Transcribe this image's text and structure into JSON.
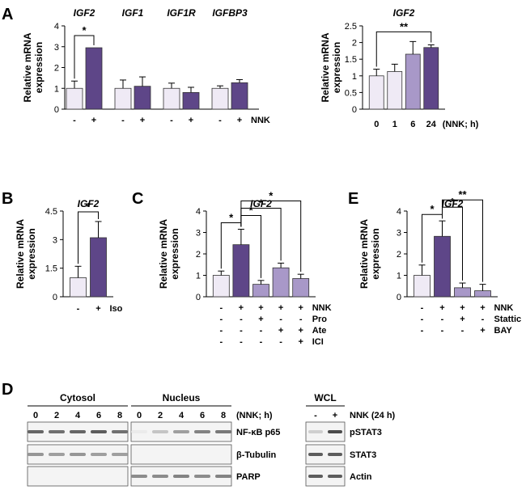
{
  "colors": {
    "light": "#efeaf5",
    "mid": "#a898c8",
    "dark": "#5e4688",
    "axis": "#000000"
  },
  "panel_labels": {
    "A": "A",
    "B": "B",
    "C": "C",
    "D": "D",
    "E": "E"
  },
  "chart_data": [
    {
      "id": "A1",
      "type": "bar",
      "ylabel": "Relative mRNA expression",
      "ylim": [
        0,
        4
      ],
      "yticks": [
        "0",
        "1",
        "2",
        "3",
        "4"
      ],
      "groups": [
        {
          "title": "IGF2",
          "bars": [
            {
              "x": "-",
              "value": 1.0,
              "err": 0.35,
              "color": "light"
            },
            {
              "x": "+",
              "value": 2.95,
              "err": 0,
              "color": "dark"
            }
          ]
        },
        {
          "title": "IGF1",
          "bars": [
            {
              "x": "-",
              "value": 1.0,
              "err": 0.4,
              "color": "light"
            },
            {
              "x": "+",
              "value": 1.1,
              "err": 0.45,
              "color": "dark"
            }
          ]
        },
        {
          "title": "IGF1R",
          "bars": [
            {
              "x": "-",
              "value": 1.0,
              "err": 0.25,
              "color": "light"
            },
            {
              "x": "+",
              "value": 0.8,
              "err": 0.25,
              "color": "dark"
            }
          ]
        },
        {
          "title": "IGFBP3",
          "bars": [
            {
              "x": "-",
              "value": 1.0,
              "err": 0.12,
              "color": "light"
            },
            {
              "x": "+",
              "value": 1.27,
              "err": 0.15,
              "color": "dark"
            }
          ]
        }
      ],
      "xlabel": "NNK",
      "sig": [
        {
          "label": "*",
          "group": 0
        }
      ]
    },
    {
      "id": "A2",
      "type": "bar",
      "title": "IGF2",
      "ylabel": "Relative mRNA expression",
      "ylim": [
        0,
        2.5
      ],
      "yticks": [
        "0",
        "0.5",
        "1",
        "1.5",
        "2",
        "2.5"
      ],
      "categories": [
        "0",
        "1",
        "6",
        "24"
      ],
      "values": [
        1.0,
        1.13,
        1.65,
        1.85
      ],
      "errors": [
        0.2,
        0.22,
        0.38,
        0.08
      ],
      "bar_colors": [
        "light",
        "light",
        "mid",
        "dark"
      ],
      "xlabel": "(NNK; h)",
      "sig": [
        {
          "label": "**",
          "from": 0,
          "to": 3
        }
      ]
    },
    {
      "id": "B",
      "type": "bar",
      "title": "IGF2",
      "ylabel": "Relative mRNA expression",
      "ylim": [
        0,
        4.5
      ],
      "yticks": [
        "0",
        "1.5",
        "3",
        "4.5"
      ],
      "categories": [
        "-",
        "+"
      ],
      "values": [
        1.0,
        3.1
      ],
      "errors": [
        0.6,
        0.85
      ],
      "bar_colors": [
        "light",
        "dark"
      ],
      "xlabel": "Iso",
      "sig": [
        {
          "label": "*",
          "from": 0,
          "to": 1
        }
      ]
    },
    {
      "id": "C",
      "type": "bar",
      "title": "IGF2",
      "ylabel": "Relative mRNA expression",
      "ylim": [
        0,
        4
      ],
      "yticks": [
        "0",
        "1",
        "2",
        "3",
        "4"
      ],
      "values": [
        1.0,
        2.43,
        0.58,
        1.35,
        0.85
      ],
      "errors": [
        0.2,
        0.72,
        0.18,
        0.22,
        0.2
      ],
      "bar_colors": [
        "light",
        "dark",
        "mid",
        "mid",
        "mid"
      ],
      "rows": [
        {
          "label": "NNK",
          "cells": [
            "-",
            "+",
            "+",
            "+",
            "+"
          ]
        },
        {
          "label": "Pro",
          "cells": [
            "-",
            "-",
            "+",
            "-",
            "-"
          ]
        },
        {
          "label": "Ate",
          "cells": [
            "-",
            "-",
            "-",
            "+",
            "+"
          ]
        },
        {
          "label": "ICI",
          "cells": [
            "-",
            "-",
            "-",
            "-",
            "+"
          ]
        }
      ],
      "sig": [
        {
          "label": "*",
          "from": 0,
          "to": 1
        },
        {
          "label": "*",
          "from": 1,
          "to": 2
        },
        {
          "label": "*",
          "from": 1,
          "to": 3
        },
        {
          "label": "*",
          "from": 1,
          "to": 4
        }
      ]
    },
    {
      "id": "E",
      "type": "bar",
      "title": "IGF2",
      "ylabel": "Relative mRNA expression",
      "ylim": [
        0,
        4
      ],
      "yticks": [
        "0",
        "1",
        "2",
        "3",
        "4"
      ],
      "values": [
        1.0,
        2.82,
        0.42,
        0.28
      ],
      "errors": [
        0.48,
        0.72,
        0.22,
        0.3
      ],
      "bar_colors": [
        "light",
        "dark",
        "mid",
        "mid"
      ],
      "rows": [
        {
          "label": "NNK",
          "cells": [
            "-",
            "+",
            "+",
            "+"
          ]
        },
        {
          "label": "Stattic",
          "cells": [
            "-",
            "-",
            "+",
            "-"
          ]
        },
        {
          "label": "BAY",
          "cells": [
            "-",
            "-",
            "-",
            "+"
          ]
        }
      ],
      "sig": [
        {
          "label": "*",
          "from": 0,
          "to": 1
        },
        {
          "label": "*",
          "from": 1,
          "to": 2
        },
        {
          "label": "**",
          "from": 1,
          "to": 3
        }
      ]
    }
  ],
  "western": {
    "cytosol_title": "Cytosol",
    "nucleus_title": "Nucleus",
    "wcl_title": "WCL",
    "time_lanes": [
      "0",
      "2",
      "4",
      "6",
      "8",
      "0",
      "2",
      "4",
      "6",
      "8"
    ],
    "time_label": "(NNK; h)",
    "wcl_lanes": [
      "-",
      "+"
    ],
    "wcl_label": "NNK (24 h)",
    "left_blots": [
      {
        "label": "NF-κB p65",
        "cyt": [
          0.8,
          0.75,
          0.8,
          0.85,
          0.75
        ],
        "nuc": [
          0.1,
          0.3,
          0.5,
          0.65,
          0.7
        ]
      },
      {
        "label": "β-Tubulin",
        "cyt": [
          0.55,
          0.5,
          0.55,
          0.5,
          0.5
        ],
        "nuc": [
          0,
          0,
          0,
          0,
          0
        ]
      },
      {
        "label": "PARP",
        "cyt": [
          0,
          0,
          0,
          0,
          0
        ],
        "nuc": [
          0.6,
          0.6,
          0.65,
          0.6,
          0.65
        ]
      }
    ],
    "right_blots": [
      {
        "label": "pSTAT3",
        "bands": [
          0.25,
          0.95
        ]
      },
      {
        "label": "STAT3",
        "bands": [
          0.85,
          0.85
        ]
      },
      {
        "label": "Actin",
        "bands": [
          0.85,
          0.85
        ]
      }
    ]
  }
}
